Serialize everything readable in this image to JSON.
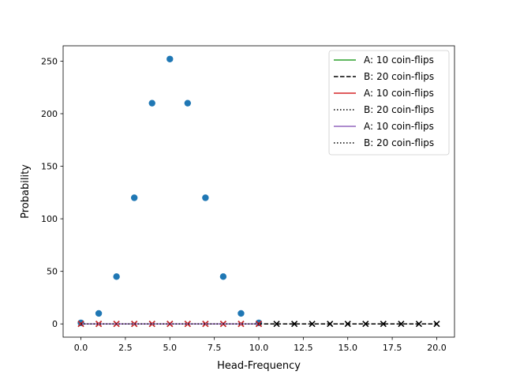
{
  "chart_data": {
    "type": "scatter",
    "xlabel": "Head-Frequency",
    "ylabel": "Probability",
    "xlim": [
      -1.0,
      21.0
    ],
    "ylim": [
      -12.6,
      264.6
    ],
    "xticks": [
      0.0,
      2.5,
      5.0,
      7.5,
      10.0,
      12.5,
      15.0,
      17.5,
      20.0
    ],
    "xtick_labels": [
      "0.0",
      "2.5",
      "5.0",
      "7.5",
      "10.0",
      "12.5",
      "15.0",
      "17.5",
      "20.0"
    ],
    "yticks": [
      0,
      50,
      100,
      150,
      200,
      250
    ],
    "ytick_labels": [
      "0",
      "50",
      "100",
      "150",
      "200",
      "250"
    ],
    "grid": false,
    "legend_position": "top-right",
    "series": [
      {
        "name": "",
        "kind": "points",
        "marker": "circle",
        "color": "#1f77b4",
        "x": [
          0,
          1,
          2,
          3,
          4,
          5,
          6,
          7,
          8,
          9,
          10
        ],
        "y": [
          1,
          10,
          45,
          120,
          210,
          252,
          210,
          120,
          45,
          10,
          1
        ]
      },
      {
        "name": "A: 10 coin-flips",
        "kind": "line",
        "style": "solid",
        "color": "#2ca02c",
        "x": [
          0,
          1,
          2,
          3,
          4,
          5,
          6,
          7,
          8,
          9,
          10
        ],
        "y": [
          0,
          0,
          0,
          0,
          0,
          0,
          0,
          0,
          0,
          0,
          0
        ]
      },
      {
        "name": "B: 20 coin-flips",
        "kind": "line",
        "style": "dashed",
        "color": "#000000",
        "marker": "x",
        "x": [
          0,
          1,
          2,
          3,
          4,
          5,
          6,
          7,
          8,
          9,
          10,
          11,
          12,
          13,
          14,
          15,
          16,
          17,
          18,
          19,
          20
        ],
        "y": [
          0,
          0,
          0,
          0,
          0,
          0,
          0,
          0,
          0,
          0,
          0,
          0,
          0,
          0,
          0,
          0,
          0,
          0,
          0,
          0,
          0
        ]
      },
      {
        "name": "A: 10 coin-flips",
        "kind": "line",
        "style": "solid",
        "color": "#d62728",
        "marker": "x",
        "x": [
          0,
          1,
          2,
          3,
          4,
          5,
          6,
          7,
          8,
          9,
          10
        ],
        "y": [
          0,
          0,
          0,
          0,
          0,
          0,
          0,
          0,
          0,
          0,
          0
        ]
      },
      {
        "name": "B: 20 coin-flips",
        "kind": "line",
        "style": "dotted",
        "color": "#000000",
        "x": [
          0,
          20
        ],
        "y": [
          0,
          0
        ]
      },
      {
        "name": "A: 10 coin-flips",
        "kind": "line",
        "style": "solid",
        "color": "#9467bd",
        "x": [
          0,
          1,
          2,
          3,
          4,
          5,
          6,
          7,
          8,
          9,
          10
        ],
        "y": [
          0,
          0,
          0,
          0,
          0,
          0,
          0,
          0,
          0,
          0,
          0
        ]
      },
      {
        "name": "B: 20 coin-flips",
        "kind": "line",
        "style": "dotted",
        "color": "#000000",
        "x": [
          0,
          20
        ],
        "y": [
          0,
          0
        ]
      }
    ]
  }
}
